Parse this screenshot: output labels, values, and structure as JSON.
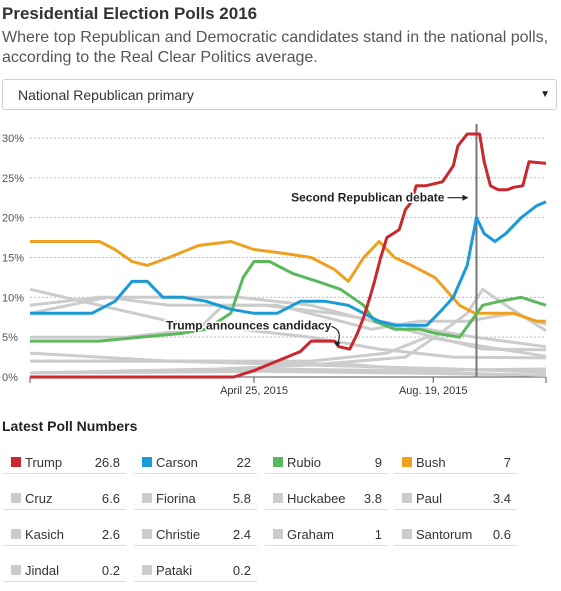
{
  "header": {
    "title": "Presidential Election Polls 2016",
    "subtitle": "Where top Republican and Democratic candidates stand in the national polls, according to the Real Clear Politics average."
  },
  "dropdown": {
    "selected": "National Republican primary",
    "arrow_icon": "triangle-down-icon"
  },
  "latest": {
    "title": "Latest Poll Numbers",
    "entries": [
      {
        "name": "Trump",
        "value": "26.8",
        "color": "#c8282e"
      },
      {
        "name": "Carson",
        "value": "22",
        "color": "#1a9ad6"
      },
      {
        "name": "Rubio",
        "value": "9",
        "color": "#5cb85c"
      },
      {
        "name": "Bush",
        "value": "7",
        "color": "#f0a020"
      },
      {
        "name": "Cruz",
        "value": "6.6",
        "color": "#cccccc"
      },
      {
        "name": "Fiorina",
        "value": "5.8",
        "color": "#cccccc"
      },
      {
        "name": "Huckabee",
        "value": "3.8",
        "color": "#cccccc"
      },
      {
        "name": "Paul",
        "value": "3.4",
        "color": "#cccccc"
      },
      {
        "name": "Kasich",
        "value": "2.6",
        "color": "#cccccc"
      },
      {
        "name": "Christie",
        "value": "2.4",
        "color": "#cccccc"
      },
      {
        "name": "Graham",
        "value": "1",
        "color": "#cccccc"
      },
      {
        "name": "Santorum",
        "value": "0.6",
        "color": "#cccccc"
      },
      {
        "name": "Jindal",
        "value": "0.2",
        "color": "#cccccc"
      },
      {
        "name": "Pataki",
        "value": "0.2",
        "color": "#cccccc"
      }
    ]
  },
  "chart_data": {
    "type": "line",
    "ylim": [
      0,
      32
    ],
    "yticks": [
      0,
      5,
      10,
      15,
      20,
      25,
      30
    ],
    "ytick_labels": [
      "0%",
      "5%",
      "10%",
      "15%",
      "20%",
      "25%",
      "30%"
    ],
    "xlim": [
      "2014-12-01",
      "2015-10-31"
    ],
    "xticks": [
      {
        "date": "2015-04-25",
        "label": "April 25, 2015"
      },
      {
        "date": "2015-08-19",
        "label": "Aug. 19, 2015"
      }
    ],
    "grid": true,
    "annotations": [
      {
        "text": "Trump announces candidacy",
        "date": "2015-06-16",
        "value": 3.6
      },
      {
        "text": "Second Republican debate",
        "date": "2015-09-16",
        "value": 22.5
      }
    ],
    "event_line_date": "2015-09-16",
    "series": [
      {
        "name": "Trump",
        "color": "#c8282e",
        "points": [
          [
            "2014-12-01",
            0
          ],
          [
            "2015-04-12",
            0
          ],
          [
            "2015-04-25",
            0.8
          ],
          [
            "2015-05-25",
            3.2
          ],
          [
            "2015-06-01",
            4.5
          ],
          [
            "2015-06-16",
            4.5
          ],
          [
            "2015-06-19",
            3.8
          ],
          [
            "2015-06-26",
            3.5
          ],
          [
            "2015-07-01",
            5.5
          ],
          [
            "2015-07-05",
            7.5
          ],
          [
            "2015-07-09",
            10
          ],
          [
            "2015-07-12",
            12
          ],
          [
            "2015-07-16",
            15
          ],
          [
            "2015-07-20",
            17.5
          ],
          [
            "2015-07-24",
            18
          ],
          [
            "2015-07-28",
            18.5
          ],
          [
            "2015-08-01",
            21
          ],
          [
            "2015-08-05",
            22
          ],
          [
            "2015-08-08",
            24
          ],
          [
            "2015-08-14",
            24
          ],
          [
            "2015-08-25",
            24.5
          ],
          [
            "2015-09-01",
            26.5
          ],
          [
            "2015-09-04",
            29
          ],
          [
            "2015-09-10",
            30.5
          ],
          [
            "2015-09-18",
            30.5
          ],
          [
            "2015-09-21",
            27
          ],
          [
            "2015-09-25",
            24
          ],
          [
            "2015-09-30",
            23.5
          ],
          [
            "2015-10-06",
            23.5
          ],
          [
            "2015-10-10",
            23.8
          ],
          [
            "2015-10-16",
            24
          ],
          [
            "2015-10-20",
            27
          ],
          [
            "2015-10-31",
            26.8
          ]
        ]
      },
      {
        "name": "Carson",
        "color": "#1a9ad6",
        "points": [
          [
            "2014-12-01",
            8
          ],
          [
            "2015-01-10",
            8
          ],
          [
            "2015-01-25",
            9.5
          ],
          [
            "2015-02-05",
            12
          ],
          [
            "2015-02-15",
            12
          ],
          [
            "2015-02-25",
            10
          ],
          [
            "2015-03-10",
            10
          ],
          [
            "2015-03-25",
            9.5
          ],
          [
            "2015-04-10",
            8.5
          ],
          [
            "2015-04-25",
            8
          ],
          [
            "2015-05-10",
            8
          ],
          [
            "2015-05-25",
            9.5
          ],
          [
            "2015-06-10",
            9.5
          ],
          [
            "2015-06-25",
            9
          ],
          [
            "2015-07-05",
            8
          ],
          [
            "2015-07-15",
            7
          ],
          [
            "2015-07-25",
            6.5
          ],
          [
            "2015-08-05",
            6.5
          ],
          [
            "2015-08-15",
            6.5
          ],
          [
            "2015-08-25",
            8.5
          ],
          [
            "2015-09-01",
            10
          ],
          [
            "2015-09-10",
            14
          ],
          [
            "2015-09-16",
            20
          ],
          [
            "2015-09-21",
            18
          ],
          [
            "2015-09-28",
            17
          ],
          [
            "2015-10-05",
            18
          ],
          [
            "2015-10-15",
            20
          ],
          [
            "2015-10-25",
            21.5
          ],
          [
            "2015-10-31",
            22
          ]
        ]
      },
      {
        "name": "Rubio",
        "color": "#5cb85c",
        "points": [
          [
            "2014-12-01",
            4.5
          ],
          [
            "2015-01-15",
            4.5
          ],
          [
            "2015-02-10",
            5
          ],
          [
            "2015-03-10",
            5.5
          ],
          [
            "2015-03-25",
            6
          ],
          [
            "2015-04-10",
            8
          ],
          [
            "2015-04-18",
            12.5
          ],
          [
            "2015-04-25",
            14.5
          ],
          [
            "2015-05-05",
            14.5
          ],
          [
            "2015-05-20",
            13
          ],
          [
            "2015-06-05",
            12
          ],
          [
            "2015-06-20",
            11
          ],
          [
            "2015-07-05",
            9
          ],
          [
            "2015-07-12",
            7
          ],
          [
            "2015-07-25",
            6
          ],
          [
            "2015-08-10",
            6
          ],
          [
            "2015-08-20",
            5.5
          ],
          [
            "2015-09-05",
            5
          ],
          [
            "2015-09-20",
            9
          ],
          [
            "2015-10-01",
            9.5
          ],
          [
            "2015-10-15",
            10
          ],
          [
            "2015-10-31",
            9
          ]
        ]
      },
      {
        "name": "Bush",
        "color": "#f0a020",
        "points": [
          [
            "2014-12-01",
            17
          ],
          [
            "2015-01-15",
            17
          ],
          [
            "2015-01-25",
            16
          ],
          [
            "2015-02-05",
            14.5
          ],
          [
            "2015-02-15",
            14
          ],
          [
            "2015-03-01",
            15
          ],
          [
            "2015-03-20",
            16.5
          ],
          [
            "2015-04-10",
            17
          ],
          [
            "2015-04-25",
            16
          ],
          [
            "2015-05-15",
            15.5
          ],
          [
            "2015-06-01",
            15
          ],
          [
            "2015-06-16",
            13.5
          ],
          [
            "2015-06-25",
            12
          ],
          [
            "2015-07-05",
            15
          ],
          [
            "2015-07-15",
            17
          ],
          [
            "2015-07-25",
            15
          ],
          [
            "2015-08-05",
            14
          ],
          [
            "2015-08-20",
            12.5
          ],
          [
            "2015-09-05",
            9
          ],
          [
            "2015-09-15",
            8
          ],
          [
            "2015-09-25",
            8
          ],
          [
            "2015-10-10",
            8
          ],
          [
            "2015-10-25",
            7
          ],
          [
            "2015-10-31",
            7
          ]
        ]
      },
      {
        "name": "Cruz",
        "color": "#cccccc",
        "points": [
          [
            "2014-12-01",
            5
          ],
          [
            "2015-02-01",
            5
          ],
          [
            "2015-03-20",
            6
          ],
          [
            "2015-04-05",
            9
          ],
          [
            "2015-05-10",
            9
          ],
          [
            "2015-06-10",
            7.5
          ],
          [
            "2015-07-10",
            6
          ],
          [
            "2015-08-10",
            7
          ],
          [
            "2015-09-10",
            7
          ],
          [
            "2015-10-10",
            8
          ],
          [
            "2015-10-31",
            6.6
          ]
        ]
      },
      {
        "name": "Fiorina",
        "color": "#cccccc",
        "points": [
          [
            "2014-12-01",
            0.5
          ],
          [
            "2015-04-01",
            1
          ],
          [
            "2015-06-01",
            1.5
          ],
          [
            "2015-08-01",
            2.5
          ],
          [
            "2015-08-20",
            5
          ],
          [
            "2015-09-10",
            8
          ],
          [
            "2015-09-20",
            11
          ],
          [
            "2015-10-05",
            9
          ],
          [
            "2015-10-31",
            5.8
          ]
        ]
      },
      {
        "name": "Huckabee",
        "color": "#cccccc",
        "points": [
          [
            "2014-12-01",
            8
          ],
          [
            "2015-01-20",
            10
          ],
          [
            "2015-03-01",
            9
          ],
          [
            "2015-05-01",
            9
          ],
          [
            "2015-06-15",
            8
          ],
          [
            "2015-07-15",
            7
          ],
          [
            "2015-08-15",
            6
          ],
          [
            "2015-09-15",
            5
          ],
          [
            "2015-10-31",
            3.8
          ]
        ]
      },
      {
        "name": "Paul",
        "color": "#cccccc",
        "points": [
          [
            "2014-12-01",
            9
          ],
          [
            "2015-01-15",
            10
          ],
          [
            "2015-03-01",
            10
          ],
          [
            "2015-04-15",
            10
          ],
          [
            "2015-06-01",
            9
          ],
          [
            "2015-07-10",
            7
          ],
          [
            "2015-08-20",
            5
          ],
          [
            "2015-09-20",
            3.5
          ],
          [
            "2015-10-31",
            3.4
          ]
        ]
      },
      {
        "name": "Kasich",
        "color": "#cccccc",
        "points": [
          [
            "2014-12-01",
            2
          ],
          [
            "2015-04-01",
            2
          ],
          [
            "2015-06-01",
            2
          ],
          [
            "2015-07-20",
            3
          ],
          [
            "2015-08-15",
            5
          ],
          [
            "2015-09-15",
            4
          ],
          [
            "2015-10-31",
            2.6
          ]
        ]
      },
      {
        "name": "Christie",
        "color": "#cccccc",
        "points": [
          [
            "2014-12-01",
            11
          ],
          [
            "2015-01-15",
            9
          ],
          [
            "2015-03-01",
            7
          ],
          [
            "2015-04-15",
            6
          ],
          [
            "2015-06-01",
            5
          ],
          [
            "2015-07-15",
            3.5
          ],
          [
            "2015-09-01",
            2.5
          ],
          [
            "2015-10-31",
            2.4
          ]
        ]
      },
      {
        "name": "Graham",
        "color": "#cccccc",
        "points": [
          [
            "2014-12-01",
            0.5
          ],
          [
            "2015-05-01",
            1
          ],
          [
            "2015-08-01",
            0.8
          ],
          [
            "2015-10-31",
            1
          ]
        ]
      },
      {
        "name": "Santorum",
        "color": "#cccccc",
        "points": [
          [
            "2014-12-01",
            3
          ],
          [
            "2015-03-01",
            2
          ],
          [
            "2015-06-01",
            1.5
          ],
          [
            "2015-09-01",
            1
          ],
          [
            "2015-10-31",
            0.6
          ]
        ]
      },
      {
        "name": "Jindal",
        "color": "#cccccc",
        "points": [
          [
            "2014-12-01",
            2
          ],
          [
            "2015-04-01",
            2
          ],
          [
            "2015-07-01",
            1.5
          ],
          [
            "2015-09-01",
            0.5
          ],
          [
            "2015-10-31",
            0.2
          ]
        ]
      },
      {
        "name": "Pataki",
        "color": "#cccccc",
        "points": [
          [
            "2014-12-01",
            0.5
          ],
          [
            "2015-05-01",
            0.7
          ],
          [
            "2015-08-01",
            0.5
          ],
          [
            "2015-10-31",
            0.2
          ]
        ]
      }
    ]
  }
}
